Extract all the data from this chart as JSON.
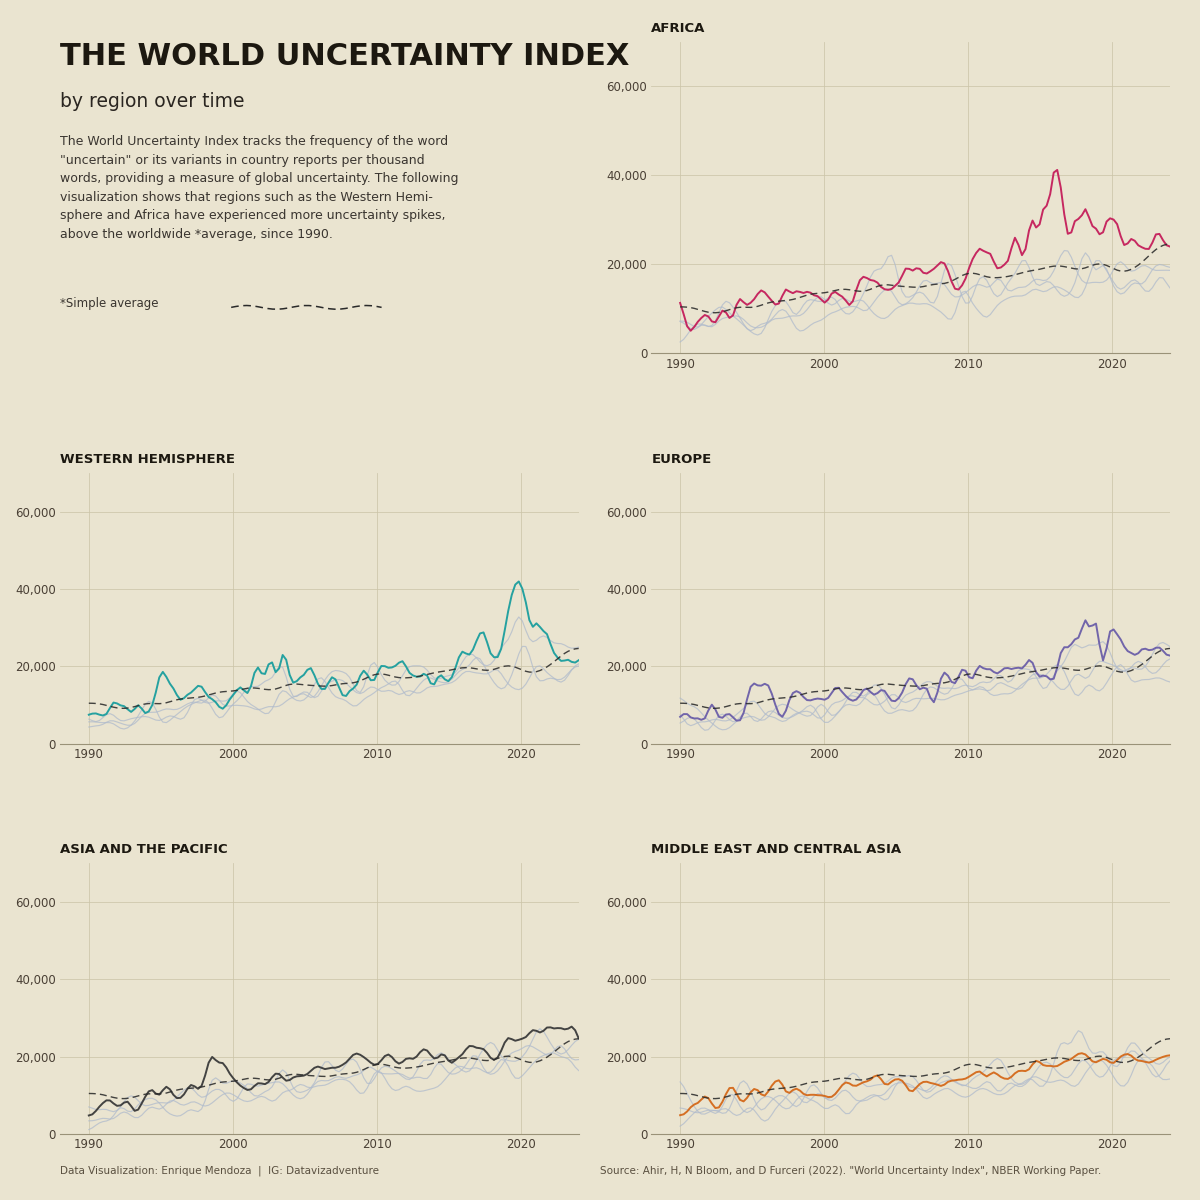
{
  "bg_color": "#EAE4D0",
  "title_main": "THE WORLD UNCERTAINTY INDEX",
  "title_sub": "by region over time",
  "description": "The World Uncertainty Index tracks the frequency of the word\n\"uncertain\" or its variants in country reports per thousand\nwords, providing a measure of global uncertainty. The following\nvisualization shows that regions such as the Western Hemi-\nsphere and Africa have experienced more uncertainty spikes,\nabove the worldwide *average, since 1990.",
  "legend_label": "*Simple average",
  "footer_left": "Data Visualization: Enrique Mendoza  |  IG: Datavizadventure",
  "footer_right": "Source: Ahir, H, N Bloom, and D Furceri (2022). \"World Uncertainty Index\", NBER Working Paper.",
  "regions": [
    "AFRICA",
    "WESTERN HEMISPHERE",
    "EUROPE",
    "ASIA AND THE PACIFIC",
    "MIDDLE EAST AND CENTRAL ASIA"
  ],
  "region_colors": [
    "#C41E5A",
    "#1A9E9E",
    "#6B5EA8",
    "#3A3A3A",
    "#D4691A"
  ],
  "grid_color": "#CCC5AA",
  "bg_lines_color": "#B0BBCC",
  "avg_color": "#2A2A2A",
  "ylim": [
    0,
    70000
  ],
  "yticks": [
    0,
    20000,
    40000,
    60000
  ],
  "xticks": [
    1990,
    2000,
    2010,
    2020
  ],
  "xmin": 1988,
  "xmax": 2024
}
